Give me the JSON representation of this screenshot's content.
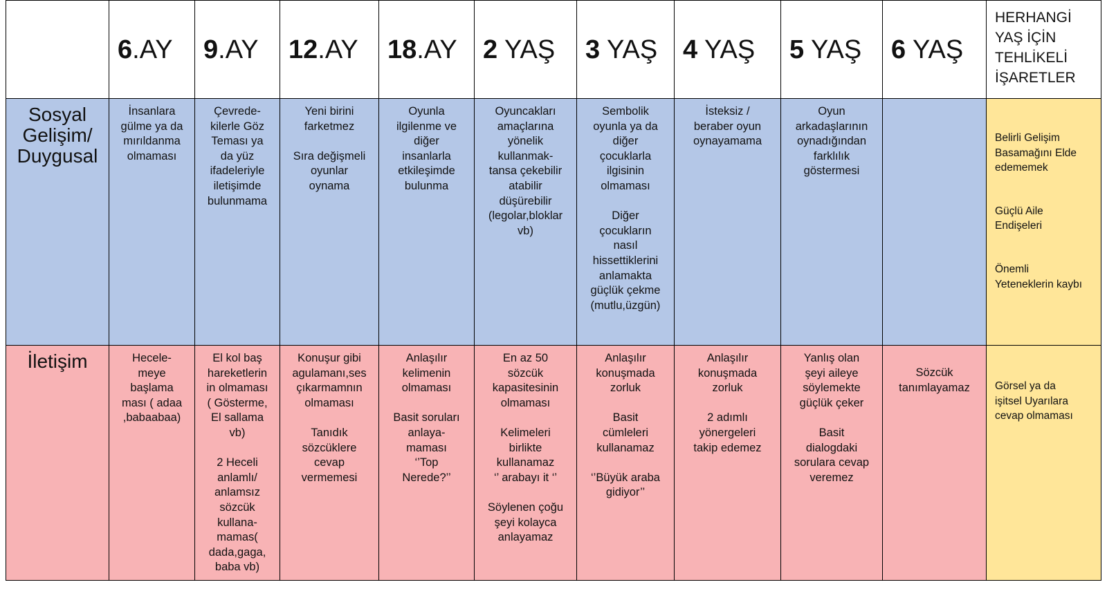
{
  "table": {
    "header": {
      "columns": [
        {
          "num": "6",
          "unit": ".AY"
        },
        {
          "num": "9",
          "unit": ".AY"
        },
        {
          "num": "12",
          "unit": ".AY"
        },
        {
          "num": "18",
          "unit": ".AY"
        },
        {
          "num": "2",
          "unit": " YAŞ"
        },
        {
          "num": "3",
          "unit": " YAŞ"
        },
        {
          "num": "4",
          "unit": " YAŞ"
        },
        {
          "num": "5",
          "unit": " YAŞ"
        },
        {
          "num": "6",
          "unit": " YAŞ"
        }
      ],
      "hazard": [
        "HERHANGİ",
        "YAŞ İÇİN",
        "TEHLİKELİ",
        "İŞARETLER"
      ]
    },
    "rows": [
      {
        "label": [
          "Sosyal",
          "Gelişim/",
          "Duygusal"
        ],
        "cells": [
          [
            [
              "İnsanlara",
              "gülme ya da",
              "mırıldanma",
              "olmaması"
            ]
          ],
          [
            [
              "Çevrede-",
              "kilerle Göz",
              "Teması ya",
              "da yüz",
              "ifadeleriyle",
              "iletişimde",
              "bulunmama"
            ]
          ],
          [
            [
              "Yeni birini",
              "farketmez"
            ],
            [
              "Sıra değişmeli",
              "oyunlar",
              "oynama"
            ]
          ],
          [
            [
              "Oyunla",
              "ilgilenme  ve",
              "diğer",
              "insanlarla",
              "etkileşimde",
              "bulunma"
            ]
          ],
          [
            [
              "Oyuncakları",
              "amaçlarına",
              "yönelik",
              "kullanmak-",
              "tansa çekebilir",
              "atabilir",
              "düşürebilir",
              "(legolar,bloklar",
              "vb)"
            ]
          ],
          [
            [
              "Sembolik",
              "oyunla ya da",
              "diğer",
              "çocuklarla",
              "ilgisinin",
              "olmaması"
            ],
            [
              "Diğer",
              "çocukların",
              "nasıl",
              "hissettiklerini",
              "anlamakta",
              "güçlük çekme",
              "(mutlu,üzgün)"
            ]
          ],
          [
            [
              "İsteksiz /",
              "beraber oyun",
              "oynayamama"
            ]
          ],
          [
            [
              "Oyun",
              "arkadaşlarının",
              "oynadığından",
              "farklılık",
              "göstermesi"
            ]
          ],
          []
        ],
        "hazard": [
          [
            "Belirli Gelişim",
            "Basamağını Elde",
            "edememek"
          ],
          [
            "Güçlü Aile",
            "Endişeleri"
          ],
          [
            "Önemli",
            "Yeteneklerin kaybı"
          ]
        ]
      },
      {
        "label": [
          "İletişim"
        ],
        "cells": [
          [
            [
              "Hecele-",
              "meye",
              "başlama",
              "ması ( adaa",
              ",babaabaa)"
            ]
          ],
          [
            [
              "El kol baş",
              "hareketlerin",
              "in olmaması",
              "( Gösterme,",
              "El sallama",
              "vb)"
            ],
            [
              "2 Heceli",
              "anlamlı/",
              "anlamsız",
              "sözcük",
              "kullana-",
              "mamas(",
              "dada,gaga,",
              "baba vb)"
            ]
          ],
          [
            [
              "Konuşur gibi",
              "agulamanı,ses",
              "çıkarmamnın",
              "olmaması"
            ],
            [
              "Tanıdık",
              "sözcüklere",
              "cevap",
              "vermemesi"
            ]
          ],
          [
            [
              "Anlaşılır",
              "kelimenin",
              "olmaması"
            ],
            [
              "Basit soruları",
              "anlaya-",
              "maması",
              "‘’Top",
              "Nerede?’’"
            ]
          ],
          [
            [
              "En az 50",
              "sözcük",
              "kapasitesinin",
              "olmaması"
            ],
            [
              "Kelimeleri",
              "birlikte",
              "kullanamaz",
              "‘’ arabayı it ‘’"
            ],
            [
              "Söylenen çoğu",
              "şeyi kolayca",
              "anlayamaz"
            ]
          ],
          [
            [
              "Anlaşılır",
              "konuşmada",
              "zorluk"
            ],
            [
              "Basit",
              "cümleleri",
              "kullanamaz"
            ],
            [
              "‘’Büyük araba",
              "gidiyor’’"
            ]
          ],
          [
            [
              "Anlaşılır",
              "konuşmada",
              "zorluk"
            ],
            [
              "2 adımlı",
              "yönergeleri",
              "takip edemez"
            ]
          ],
          [
            [
              "Yanlış olan",
              "şeyi aileye",
              "söylemekte",
              "güçlük çeker"
            ],
            [
              "Basit",
              "dialogdaki",
              "sorulara cevap",
              "veremez"
            ]
          ],
          [
            [
              "Sözcük",
              "tanımlayamaz"
            ]
          ]
        ],
        "hazard": [
          [
            "Görsel ya da",
            "işitsel Uyarılara",
            "cevap olmaması"
          ]
        ]
      }
    ]
  }
}
